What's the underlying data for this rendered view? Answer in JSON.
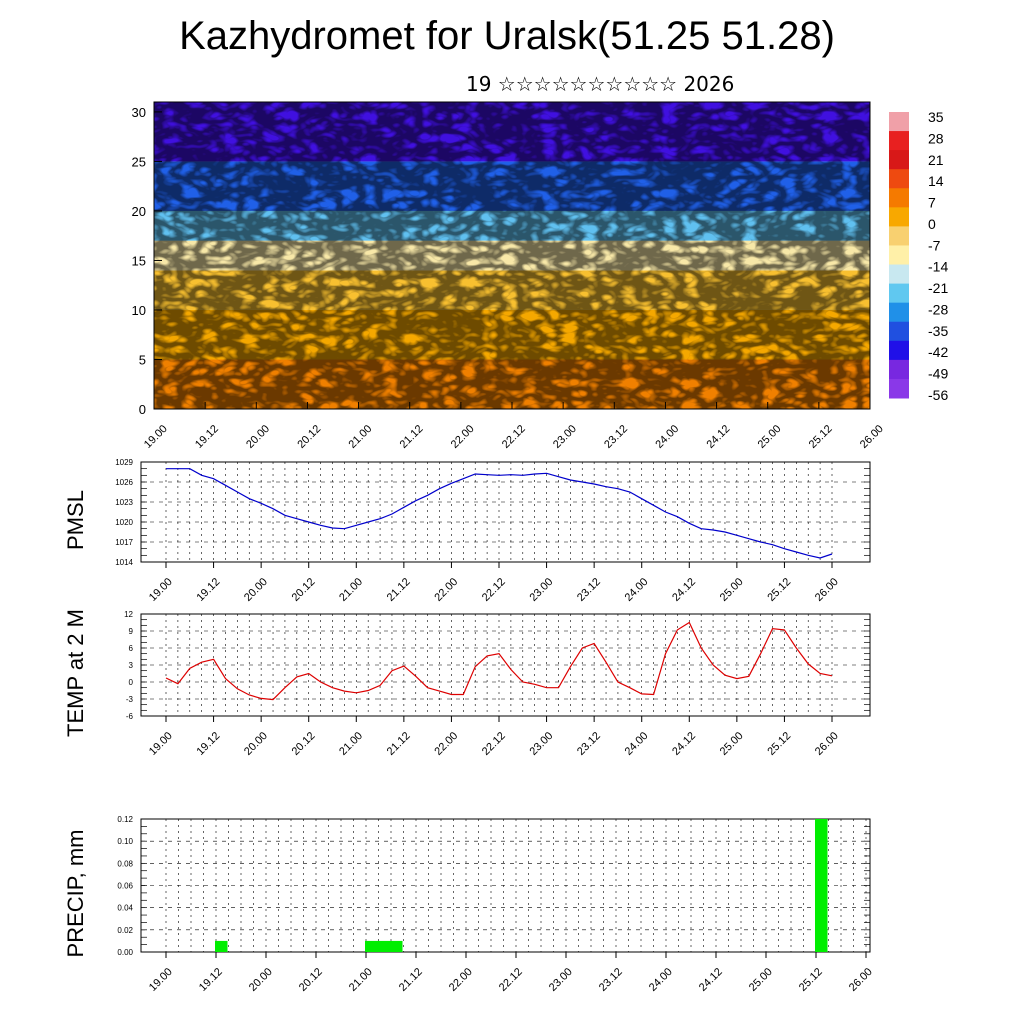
{
  "title": "Kazhydromet for Uralsk(51.25 51.28)",
  "subtitle": "19 ☆☆☆☆☆☆☆☆☆☆ 2026",
  "colorbar": {
    "labels": [
      "35",
      "28",
      "21",
      "14",
      "7",
      "0",
      "-7",
      "-14",
      "-21",
      "-28",
      "-35",
      "-42",
      "-49",
      "-56"
    ],
    "colors": [
      "#f0a0a8",
      "#e82020",
      "#d81818",
      "#ee4a10",
      "#f57a00",
      "#f8a800",
      "#f8d070",
      "#fff0a8",
      "#c8e8f0",
      "#60c8f0",
      "#2090e8",
      "#2050e0",
      "#2010e8",
      "#7828e0",
      "#8a38e8"
    ]
  },
  "chart_data": [
    {
      "type": "heatmap",
      "name": "cross-section",
      "x_ticks": [
        "19.00",
        "19.12",
        "20.00",
        "20.12",
        "21.00",
        "21.12",
        "22.00",
        "22.12",
        "23.00",
        "23.12",
        "24.00",
        "24.12",
        "25.00",
        "25.12",
        "26.00"
      ],
      "ylim": [
        0,
        31
      ],
      "y_ticks": [
        "0",
        "5",
        "10",
        "15",
        "20",
        "25",
        "30"
      ],
      "levels": [
        0,
        5,
        10,
        14,
        17,
        20,
        25,
        31
      ],
      "level_colors": [
        "#f08000",
        "#f5a800",
        "#f8c030",
        "#f8e8a8",
        "#60c0f0",
        "#2060e8",
        "#4010e0",
        "#8a30e8"
      ]
    },
    {
      "type": "line",
      "ylabel": "PMSL",
      "ylim": [
        1014,
        1029
      ],
      "y_ticks": [
        "1029",
        "1026",
        "1023",
        "1020",
        "1017",
        "1014"
      ],
      "x_ticks": [
        "19.00",
        "19.12",
        "20.00",
        "20.12",
        "21.00",
        "21.12",
        "22.00",
        "22.12",
        "23.00",
        "23.12",
        "24.00",
        "24.12",
        "25.00",
        "25.12",
        "26.00"
      ],
      "color": "#0000cc",
      "x": [
        0,
        3,
        6,
        9,
        12,
        15,
        18,
        21,
        24,
        27,
        30,
        33,
        36,
        39,
        42,
        45,
        48,
        51,
        54,
        57,
        60,
        63,
        66,
        69,
        72,
        75,
        78,
        81,
        84,
        87,
        90,
        93,
        96,
        99,
        102,
        105,
        108,
        111,
        114,
        117,
        120,
        123,
        126,
        129,
        132,
        135,
        138,
        141,
        144,
        147,
        150,
        153,
        156,
        159,
        162,
        165,
        168
      ],
      "values": [
        1028,
        1028,
        1028,
        1027,
        1026.5,
        1025.5,
        1024.5,
        1023.5,
        1022.8,
        1022,
        1021,
        1020.5,
        1020,
        1019.5,
        1019.1,
        1019,
        1019.5,
        1020,
        1020.5,
        1021.2,
        1022.2,
        1023.2,
        1024,
        1025,
        1025.8,
        1026.5,
        1027.2,
        1027.1,
        1027,
        1027.1,
        1027,
        1027.2,
        1027.3,
        1026.8,
        1026.3,
        1026,
        1025.7,
        1025.3,
        1025,
        1024.5,
        1023.5,
        1022.5,
        1021.5,
        1020.8,
        1019.8,
        1019,
        1018.8,
        1018.5,
        1018,
        1017.5,
        1017,
        1016.6,
        1016,
        1015.5,
        1015,
        1014.6,
        1015.2
      ]
    },
    {
      "type": "line",
      "ylabel": "TEMP at 2 M",
      "ylim": [
        -6,
        12
      ],
      "y_ticks": [
        "12",
        "9",
        "6",
        "3",
        "0",
        "-3",
        "-6"
      ],
      "x_ticks": [
        "19.00",
        "19.12",
        "20.00",
        "20.12",
        "21.00",
        "21.12",
        "22.00",
        "22.12",
        "23.00",
        "23.12",
        "24.00",
        "24.12",
        "25.00",
        "25.12",
        "26.00"
      ],
      "color": "#dd0000",
      "x": [
        0,
        3,
        6,
        9,
        12,
        15,
        18,
        21,
        24,
        27,
        30,
        33,
        36,
        39,
        42,
        45,
        48,
        51,
        54,
        57,
        60,
        63,
        66,
        69,
        72,
        75,
        78,
        81,
        84,
        87,
        90,
        93,
        96,
        99,
        102,
        105,
        108,
        111,
        114,
        117,
        120,
        123,
        126,
        129,
        132,
        135,
        138,
        141,
        144,
        147,
        150,
        153,
        156,
        159,
        162,
        165,
        168
      ],
      "values": [
        0.7,
        -0.3,
        2.4,
        3.5,
        4.0,
        0.6,
        -1.2,
        -2.3,
        -2.9,
        -3.1,
        -1.0,
        0.9,
        1.5,
        0.0,
        -1.0,
        -1.6,
        -1.9,
        -1.5,
        -0.6,
        2.0,
        2.8,
        1.0,
        -1.0,
        -1.6,
        -2.2,
        -2.2,
        2.7,
        4.6,
        5.0,
        2.2,
        0.0,
        -0.4,
        -1.0,
        -1.0,
        2.7,
        6.0,
        6.8,
        3.5,
        0.0,
        -1.0,
        -2.1,
        -2.2,
        5.0,
        9.2,
        10.5,
        6.0,
        3.0,
        1.2,
        0.6,
        1.0,
        5.0,
        9.4,
        9.2,
        6.0,
        3.2,
        1.5,
        1.1
      ]
    },
    {
      "type": "bar",
      "ylabel": "PRECIP, mm",
      "ylim": [
        0,
        0.12
      ],
      "y_ticks": [
        "0.12",
        "0.10",
        "0.08",
        "0.06",
        "0.04",
        "0.02",
        "0.00"
      ],
      "x_ticks": [
        "19.00",
        "19.12",
        "20.00",
        "20.12",
        "21.00",
        "21.12",
        "22.00",
        "22.12",
        "23.00",
        "23.12",
        "24.00",
        "24.12",
        "25.00",
        "25.12",
        "26.00"
      ],
      "color": "#00ee00",
      "bars": [
        {
          "x": 6,
          "value": 0.01
        },
        {
          "x": 42,
          "value": 0.01
        },
        {
          "x": 45,
          "value": 0.01
        },
        {
          "x": 48,
          "value": 0.01
        },
        {
          "x": 150,
          "value": 0.12
        }
      ]
    }
  ]
}
